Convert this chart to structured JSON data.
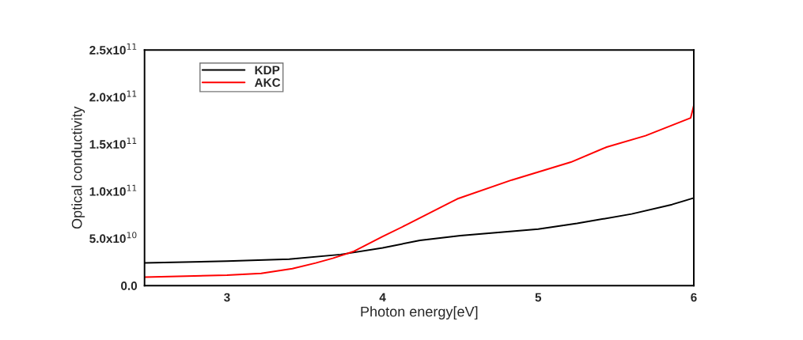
{
  "chart_data": {
    "type": "line",
    "xlabel": "Photon energy[eV]",
    "ylabel": "Optical conductivity",
    "xlim": [
      2.47,
      6
    ],
    "xticks": [
      3,
      4,
      5,
      6
    ],
    "ylim": [
      0,
      250000000000.0
    ],
    "yticks": [
      {
        "value": 0,
        "label": "0.0"
      },
      {
        "value": 50000000000.0,
        "label": "5.0x10$^{10}$"
      },
      {
        "value": 100000000000.0,
        "label": "1.0x10$^{11}$"
      },
      {
        "value": 150000000000.0,
        "label": "1.5x10$^{11}$"
      },
      {
        "value": 200000000000.0,
        "label": "2.0x10$^{11}$"
      },
      {
        "value": 250000000000.0,
        "label": "2.5x10$^{11}$"
      }
    ],
    "legend": "top left",
    "grid": false,
    "series": [
      {
        "name": "KDP",
        "color": "#000000",
        "x": [
          2.47,
          3,
          3.4,
          3.73,
          4,
          4.24,
          4.5,
          5,
          5.25,
          5.6,
          5.86,
          6
        ],
        "values": [
          24000000000.0,
          26000000000.0,
          28000000000.0,
          33000000000.0,
          40000000000.0,
          48000000000.0,
          53000000000.0,
          60000000000.0,
          66000000000.0,
          76000000000.0,
          86000000000.0,
          93000000000.0
        ]
      },
      {
        "name": "AKC",
        "color": "#ff0000",
        "x": [
          2.47,
          3,
          3.22,
          3.42,
          3.57,
          3.68,
          3.81,
          4,
          4.16,
          4.48,
          4.83,
          5.21,
          5.44,
          5.69,
          5.98,
          6
        ],
        "values": [
          9000000000.0,
          11000000000.0,
          13000000000.0,
          18000000000.0,
          24000000000.0,
          29000000000.0,
          36000000000.0,
          52000000000.0,
          65000000000.0,
          92000000000.0,
          112000000000.0,
          131000000000.0,
          147000000000.0,
          159000000000.0,
          178000000000.0,
          191000000000.0
        ]
      }
    ]
  }
}
